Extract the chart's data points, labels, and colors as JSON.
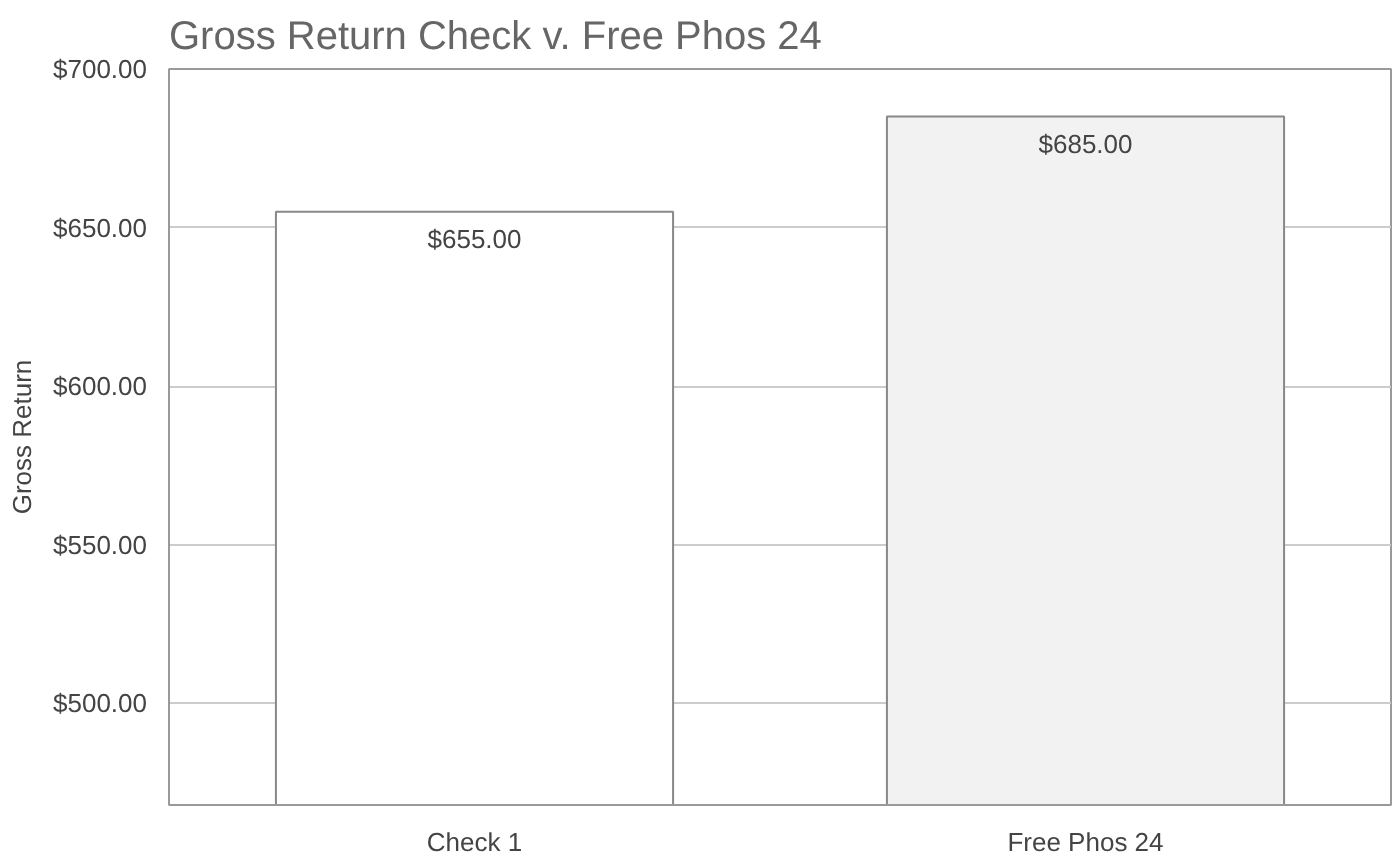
{
  "chart_data": {
    "type": "bar",
    "title": "Gross Return Check v. Free Phos 24",
    "ylabel": "Gross Return",
    "categories": [
      "Check 1",
      "Free Phos 24"
    ],
    "series": [
      {
        "colors": [
          "#ffffff",
          "#f2f2f2"
        ],
        "values": [
          655,
          685
        ],
        "value_labels": [
          "$655.00",
          "$685.00"
        ]
      }
    ],
    "ylim": [
      468,
      700
    ],
    "yticks": [
      {
        "value": 500,
        "label": "$500.00"
      },
      {
        "value": 550,
        "label": "$550.00"
      },
      {
        "value": 600,
        "label": "$600.00"
      },
      {
        "value": 650,
        "label": "$650.00"
      },
      {
        "value": 700,
        "label": "$700.00"
      }
    ],
    "grid": "y"
  }
}
